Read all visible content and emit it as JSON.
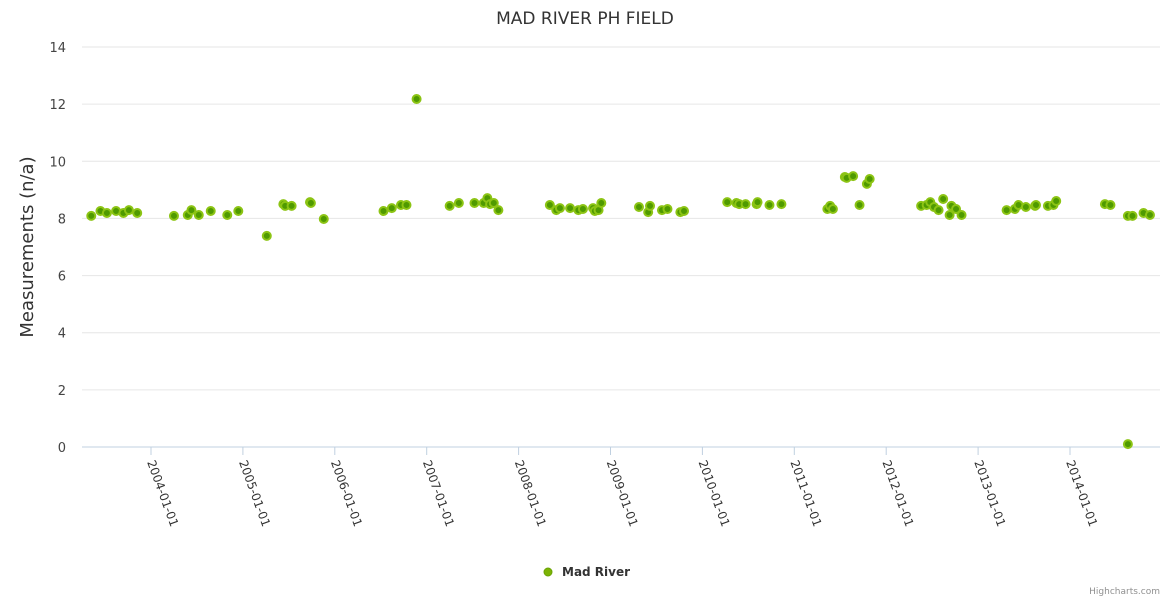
{
  "chart_data": {
    "type": "scatter",
    "title": "MAD RIVER PH FIELD",
    "xlabel": "",
    "ylabel": "Measurements (n/a)",
    "ylim": [
      0,
      14
    ],
    "yticks": [
      "0",
      "2",
      "4",
      "6",
      "8",
      "10",
      "12",
      "14"
    ],
    "xlim": [
      2003.35,
      2014.95
    ],
    "xticks": [
      {
        "label": "2004-01-01",
        "value": 2004
      },
      {
        "label": "2005-01-01",
        "value": 2005
      },
      {
        "label": "2006-01-01",
        "value": 2006
      },
      {
        "label": "2007-01-01",
        "value": 2007
      },
      {
        "label": "2008-01-01",
        "value": 2008
      },
      {
        "label": "2009-01-01",
        "value": 2009
      },
      {
        "label": "2010-01-01",
        "value": 2010
      },
      {
        "label": "2011-01-01",
        "value": 2011
      },
      {
        "label": "2012-01-01",
        "value": 2012
      },
      {
        "label": "2013-01-01",
        "value": 2013
      },
      {
        "label": "2014-01-01",
        "value": 2014
      }
    ],
    "grid": true,
    "legend_position": "bottom-center",
    "series": [
      {
        "name": "Mad River",
        "color": "#7cb305",
        "points": [
          [
            2003.35,
            8.09
          ],
          [
            2003.45,
            8.26
          ],
          [
            2003.52,
            8.19
          ],
          [
            2003.62,
            8.26
          ],
          [
            2003.7,
            8.19
          ],
          [
            2003.76,
            8.29
          ],
          [
            2003.85,
            8.19
          ],
          [
            2004.25,
            8.09
          ],
          [
            2004.4,
            8.12
          ],
          [
            2004.44,
            8.29
          ],
          [
            2004.52,
            8.12
          ],
          [
            2004.65,
            8.26
          ],
          [
            2004.83,
            8.12
          ],
          [
            2004.95,
            8.26
          ],
          [
            2005.26,
            7.39
          ],
          [
            2005.44,
            8.5
          ],
          [
            2005.46,
            8.44
          ],
          [
            2005.53,
            8.44
          ],
          [
            2005.73,
            8.57
          ],
          [
            2005.74,
            8.54
          ],
          [
            2005.88,
            7.98
          ],
          [
            2006.53,
            8.26
          ],
          [
            2006.62,
            8.36
          ],
          [
            2006.72,
            8.47
          ],
          [
            2006.78,
            8.47
          ],
          [
            2006.89,
            12.18
          ],
          [
            2007.25,
            8.44
          ],
          [
            2007.35,
            8.54
          ],
          [
            2007.52,
            8.54
          ],
          [
            2007.62,
            8.54
          ],
          [
            2007.66,
            8.71
          ],
          [
            2007.69,
            8.5
          ],
          [
            2007.73,
            8.54
          ],
          [
            2007.78,
            8.29
          ],
          [
            2008.34,
            8.47
          ],
          [
            2008.41,
            8.29
          ],
          [
            2008.45,
            8.36
          ],
          [
            2008.56,
            8.36
          ],
          [
            2008.65,
            8.29
          ],
          [
            2008.7,
            8.33
          ],
          [
            2008.81,
            8.36
          ],
          [
            2008.83,
            8.26
          ],
          [
            2008.87,
            8.29
          ],
          [
            2008.9,
            8.54
          ],
          [
            2009.31,
            8.4
          ],
          [
            2009.41,
            8.22
          ],
          [
            2009.43,
            8.44
          ],
          [
            2009.56,
            8.29
          ],
          [
            2009.62,
            8.33
          ],
          [
            2009.76,
            8.22
          ],
          [
            2009.8,
            8.26
          ],
          [
            2010.27,
            8.57
          ],
          [
            2010.37,
            8.54
          ],
          [
            2010.4,
            8.5
          ],
          [
            2010.47,
            8.5
          ],
          [
            2010.59,
            8.5
          ],
          [
            2010.6,
            8.57
          ],
          [
            2010.73,
            8.47
          ],
          [
            2010.86,
            8.5
          ],
          [
            2011.36,
            8.33
          ],
          [
            2011.39,
            8.44
          ],
          [
            2011.42,
            8.33
          ],
          [
            2011.55,
            9.45
          ],
          [
            2011.57,
            9.42
          ],
          [
            2011.64,
            9.48
          ],
          [
            2011.71,
            8.47
          ],
          [
            2011.79,
            9.21
          ],
          [
            2011.82,
            9.38
          ],
          [
            2012.38,
            8.44
          ],
          [
            2012.44,
            8.47
          ],
          [
            2012.48,
            8.57
          ],
          [
            2012.52,
            8.4
          ],
          [
            2012.57,
            8.29
          ],
          [
            2012.62,
            8.68
          ],
          [
            2012.69,
            8.12
          ],
          [
            2012.71,
            8.44
          ],
          [
            2012.76,
            8.33
          ],
          [
            2012.82,
            8.12
          ],
          [
            2013.31,
            8.29
          ],
          [
            2013.4,
            8.33
          ],
          [
            2013.44,
            8.47
          ],
          [
            2013.52,
            8.4
          ],
          [
            2013.62,
            8.44
          ],
          [
            2013.63,
            8.47
          ],
          [
            2013.76,
            8.44
          ],
          [
            2013.82,
            8.47
          ],
          [
            2013.85,
            8.61
          ],
          [
            2014.38,
            8.5
          ],
          [
            2014.44,
            8.47
          ],
          [
            2014.63,
            8.09
          ],
          [
            2014.68,
            8.09
          ],
          [
            2014.63,
            0.1
          ],
          [
            2014.8,
            8.19
          ],
          [
            2014.87,
            8.12
          ]
        ]
      }
    ],
    "legend": [
      {
        "label": "Mad River",
        "color": "#7cb305"
      }
    ]
  },
  "credit": "Highcharts.com"
}
